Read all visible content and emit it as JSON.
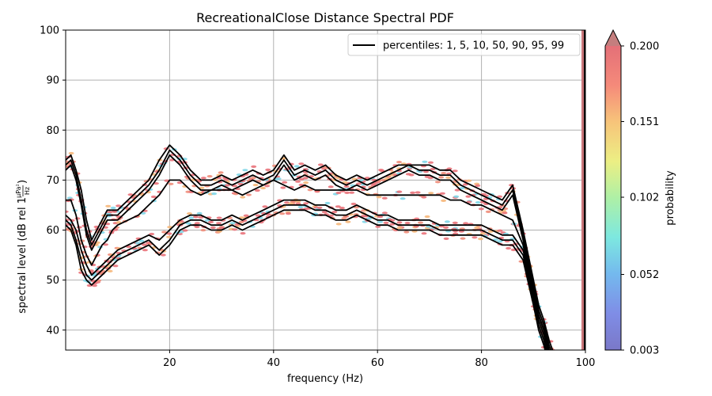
{
  "chart_data": {
    "type": "line",
    "title": "RecreationalClose Distance Spectral PDF",
    "xlabel": "frequency (Hz)",
    "ylabel": "spectral level (dB rel 1",
    "ylabel_fraction": {
      "numerator": "μPa²",
      "denominator": "Hz"
    },
    "xlim": [
      0,
      100
    ],
    "ylim": [
      36,
      100
    ],
    "x_ticks": [
      "20",
      "40",
      "60",
      "80",
      "100"
    ],
    "y_ticks": [
      "40",
      "50",
      "60",
      "70",
      "80",
      "90",
      "100"
    ],
    "grid": true,
    "legend": {
      "position": "top-right",
      "entry": "percentiles: 1, 5, 10, 50, 90, 95, 99"
    },
    "colorbar": {
      "label": "probability",
      "ticks": [
        "0.003",
        "0.052",
        "0.102",
        "0.151",
        "0.200"
      ],
      "tick_values": [
        0.003,
        0.052,
        0.102,
        0.151,
        0.2
      ],
      "range": [
        0.003,
        0.2
      ],
      "extend": "max"
    },
    "x": [
      0,
      1,
      2,
      3,
      4,
      5,
      6,
      7,
      8,
      9,
      10,
      12,
      14,
      16,
      18,
      20,
      22,
      24,
      26,
      28,
      30,
      32,
      34,
      36,
      38,
      40,
      42,
      44,
      46,
      48,
      50,
      52,
      54,
      56,
      58,
      60,
      62,
      64,
      66,
      68,
      70,
      72,
      74,
      76,
      78,
      80,
      82,
      84,
      86,
      88,
      90,
      91,
      92,
      93,
      94
    ],
    "series": [
      {
        "values": [
          74,
          75,
          72,
          68,
          62,
          58,
          60,
          62,
          64,
          64,
          64,
          66,
          68,
          70,
          74,
          77,
          75,
          72,
          70,
          70,
          71,
          70,
          71,
          72,
          71,
          72,
          75,
          72,
          73,
          72,
          73,
          71,
          70,
          71,
          70,
          71,
          72,
          73,
          73,
          73,
          73,
          72,
          72,
          70,
          69,
          68,
          67,
          66,
          69,
          60,
          50,
          45,
          42,
          38,
          35
        ]
      },
      {
        "values": [
          73,
          74,
          71,
          66,
          60,
          57,
          59,
          61,
          63,
          63,
          63,
          65,
          67,
          69,
          72,
          76,
          74,
          71,
          69,
          69,
          70,
          69,
          70,
          71,
          70,
          71,
          74,
          71,
          72,
          71,
          72,
          70,
          69,
          70,
          69,
          70,
          71,
          72,
          73,
          72,
          72,
          71,
          71,
          69,
          68,
          67,
          66,
          65,
          68,
          59,
          49,
          44,
          41,
          37,
          34
        ]
      },
      {
        "values": [
          72,
          73,
          70,
          65,
          59,
          56,
          58,
          60,
          62,
          62,
          62,
          64,
          66,
          68,
          71,
          75,
          73,
          70,
          68,
          68,
          69,
          68,
          69,
          70,
          69,
          70,
          73,
          70,
          71,
          70,
          71,
          69,
          68,
          69,
          68,
          69,
          70,
          71,
          72,
          71,
          71,
          70,
          70,
          68,
          67,
          66,
          65,
          64,
          67,
          58,
          48,
          43,
          40,
          36,
          33
        ]
      },
      {
        "values": [
          66,
          66,
          63,
          58,
          55,
          53,
          55,
          57,
          58,
          60,
          61,
          62,
          63,
          65,
          67,
          70,
          70,
          68,
          67,
          68,
          68,
          68,
          67,
          68,
          69,
          70,
          69,
          68,
          69,
          68,
          68,
          68,
          68,
          68,
          67,
          67,
          67,
          67,
          67,
          67,
          67,
          67,
          66,
          66,
          65,
          65,
          64,
          63,
          62,
          57,
          48,
          43,
          40,
          36,
          33
        ]
      },
      {
        "values": [
          63,
          62,
          60,
          56,
          53,
          51,
          52,
          53,
          54,
          55,
          56,
          57,
          58,
          59,
          58,
          60,
          62,
          63,
          63,
          62,
          62,
          63,
          62,
          63,
          64,
          65,
          66,
          66,
          66,
          65,
          65,
          64,
          64,
          65,
          64,
          63,
          63,
          62,
          62,
          62,
          62,
          61,
          61,
          61,
          61,
          61,
          60,
          59,
          59,
          56,
          47,
          42,
          39,
          35,
          32
        ]
      },
      {
        "values": [
          62,
          61,
          58,
          54,
          51,
          50,
          51,
          52,
          53,
          54,
          55,
          56,
          57,
          58,
          56,
          58,
          61,
          62,
          62,
          61,
          61,
          62,
          61,
          62,
          63,
          64,
          65,
          65,
          65,
          64,
          64,
          63,
          63,
          64,
          63,
          62,
          62,
          61,
          61,
          61,
          61,
          60,
          60,
          60,
          60,
          60,
          59,
          58,
          58,
          55,
          46,
          41,
          38,
          34,
          31
        ]
      },
      {
        "values": [
          61,
          60,
          57,
          52,
          50,
          49,
          50,
          51,
          52,
          53,
          54,
          55,
          56,
          57,
          55,
          57,
          60,
          61,
          61,
          60,
          60,
          61,
          60,
          61,
          62,
          63,
          64,
          64,
          64,
          63,
          63,
          62,
          62,
          63,
          62,
          61,
          61,
          60,
          60,
          60,
          60,
          59,
          59,
          59,
          59,
          59,
          58,
          57,
          57,
          54,
          45,
          40,
          37,
          33,
          30
        ]
      }
    ]
  }
}
